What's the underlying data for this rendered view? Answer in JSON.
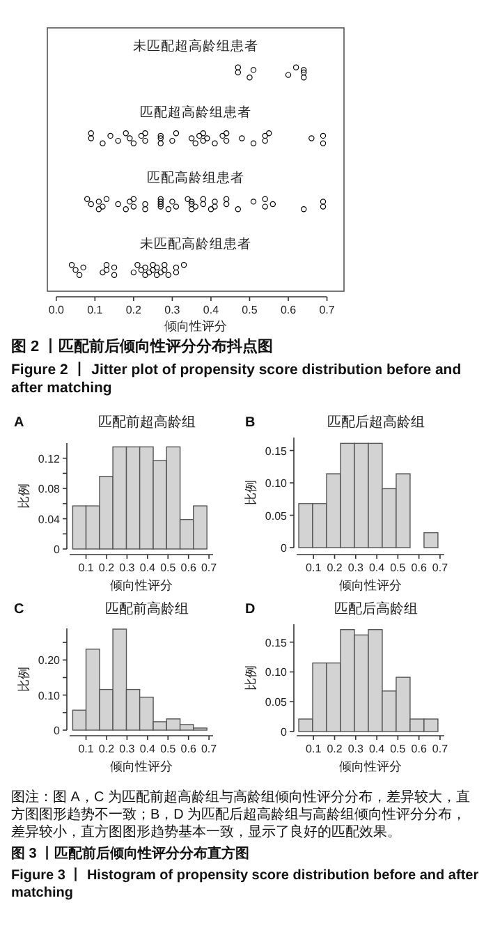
{
  "chart_data": [
    {
      "type": "scatter",
      "xlabel": "倾向性评分",
      "marker": "circle",
      "orientation": "horizontal",
      "categories": [
        "未匹配超高龄组患者",
        "匹配超高龄组患者",
        "匹配高龄组患者",
        "未匹配高龄组患者"
      ],
      "xlim": [
        -0.023,
        0.744
      ],
      "xticks": [
        {
          "value": 0,
          "label": "0.0"
        },
        0.1,
        0.2,
        0.3,
        0.4,
        0.5,
        0.6,
        0.7
      ],
      "series": [
        {
          "color": "#000000",
          "x": [
            "未匹配超高龄组患者",
            "未匹配超高龄组患者",
            "未匹配超高龄组患者",
            "未匹配超高龄组患者",
            "未匹配超高龄组患者",
            "未匹配超高龄组患者",
            "未匹配超高龄组患者",
            "未匹配超高龄组患者",
            "未匹配超高龄组患者"
          ],
          "values": [
            0.47,
            0.47,
            0.5,
            0.51,
            0.6,
            0.62,
            0.64,
            0.64,
            0.64
          ]
        },
        {
          "color": "#000000",
          "x": [
            "匹配超高龄组患者",
            "匹配超高龄组患者",
            "匹配超高龄组患者",
            "匹配超高龄组患者",
            "匹配超高龄组患者",
            "匹配超高龄组患者",
            "匹配超高龄组患者",
            "匹配超高龄组患者",
            "匹配超高龄组患者",
            "匹配超高龄组患者",
            "匹配超高龄组患者",
            "匹配超高龄组患者",
            "匹配超高龄组患者",
            "匹配超高龄组患者",
            "匹配超高龄组患者",
            "匹配超高龄组患者",
            "匹配超高龄组患者",
            "匹配超高龄组患者",
            "匹配超高龄组患者",
            "匹配超高龄组患者",
            "匹配超高龄组患者",
            "匹配超高龄组患者",
            "匹配超高龄组患者",
            "匹配超高龄组患者",
            "匹配超高龄组患者",
            "匹配超高龄组患者",
            "匹配超高龄组患者",
            "匹配超高龄组患者",
            "匹配超高龄组患者",
            "匹配超高龄组患者",
            "匹配超高龄组患者",
            "匹配超高龄组患者",
            "匹配超高龄组患者",
            "匹配超高龄组患者"
          ],
          "values": [
            0.09,
            0.09,
            0.12,
            0.14,
            0.16,
            0.18,
            0.19,
            0.2,
            0.22,
            0.23,
            0.23,
            0.27,
            0.27,
            0.27,
            0.3,
            0.31,
            0.35,
            0.36,
            0.37,
            0.38,
            0.38,
            0.39,
            0.41,
            0.43,
            0.44,
            0.44,
            0.48,
            0.51,
            0.54,
            0.54,
            0.55,
            0.66,
            0.69,
            0.69
          ]
        },
        {
          "color": "#000000",
          "x": [
            "匹配高龄组患者",
            "匹配高龄组患者",
            "匹配高龄组患者",
            "匹配高龄组患者",
            "匹配高龄组患者",
            "匹配高龄组患者",
            "匹配高龄组患者",
            "匹配高龄组患者",
            "匹配高龄组患者",
            "匹配高龄组患者",
            "匹配高龄组患者",
            "匹配高龄组患者",
            "匹配高龄组患者",
            "匹配高龄组患者",
            "匹配高龄组患者",
            "匹配高龄组患者",
            "匹配高龄组患者",
            "匹配高龄组患者",
            "匹配高龄组患者",
            "匹配高龄组患者",
            "匹配高龄组患者",
            "匹配高龄组患者",
            "匹配高龄组患者",
            "匹配高龄组患者",
            "匹配高龄组患者",
            "匹配高龄组患者",
            "匹配高龄组患者",
            "匹配高龄组患者",
            "匹配高龄组患者",
            "匹配高龄组患者",
            "匹配高龄组患者",
            "匹配高龄组患者",
            "匹配高龄组患者",
            "匹配高龄组患者",
            "匹配高龄组患者",
            "匹配高龄组患者",
            "匹配高龄组患者",
            "匹配高龄组患者",
            "匹配高龄组患者",
            "匹配高龄组患者"
          ],
          "values": [
            0.08,
            0.09,
            0.11,
            0.11,
            0.12,
            0.13,
            0.16,
            0.18,
            0.19,
            0.2,
            0.2,
            0.23,
            0.23,
            0.27,
            0.27,
            0.27,
            0.27,
            0.29,
            0.3,
            0.31,
            0.34,
            0.35,
            0.35,
            0.35,
            0.36,
            0.38,
            0.38,
            0.4,
            0.41,
            0.41,
            0.44,
            0.44,
            0.47,
            0.51,
            0.54,
            0.54,
            0.56,
            0.64,
            0.69,
            0.69
          ]
        },
        {
          "color": "#000000",
          "x": [
            "未匹配高龄组患者",
            "未匹配高龄组患者",
            "未匹配高龄组患者",
            "未匹配高龄组患者",
            "未匹配高龄组患者",
            "未匹配高龄组患者",
            "未匹配高龄组患者",
            "未匹配高龄组患者",
            "未匹配高龄组患者",
            "未匹配高龄组患者",
            "未匹配高龄组患者",
            "未匹配高龄组患者",
            "未匹配高龄组患者",
            "未匹配高龄组患者",
            "未匹配高龄组患者",
            "未匹配高龄组患者",
            "未匹配高龄组患者",
            "未匹配高龄组患者",
            "未匹配高龄组患者",
            "未匹配高龄组患者",
            "未匹配高龄组患者",
            "未匹配高龄组患者",
            "未匹配高龄组患者",
            "未匹配高龄组患者",
            "未匹配高龄组患者",
            "未匹配高龄组患者"
          ],
          "values": [
            0.04,
            0.05,
            0.06,
            0.07,
            0.12,
            0.13,
            0.13,
            0.15,
            0.15,
            0.2,
            0.21,
            0.22,
            0.23,
            0.23,
            0.24,
            0.25,
            0.25,
            0.26,
            0.26,
            0.27,
            0.28,
            0.28,
            0.29,
            0.31,
            0.31,
            0.33
          ]
        }
      ],
      "annotations": [
        "图 2 丨匹配前后倾向性评分分布抖点图",
        "Figure 2 丨 Jitter plot of propensity score distribution before and after matching"
      ]
    },
    {
      "type": "histogram",
      "subtitle": "A",
      "title": "匹配前超高龄组",
      "xlabel": "倾向性评分",
      "ylabel": "比例",
      "color": "#d3d3d3",
      "bins": [
        0.035,
        0.1,
        0.166,
        0.231,
        0.297,
        0.362,
        0.428,
        0.493,
        0.559,
        0.624,
        0.69
      ],
      "values": [
        0.057,
        0.057,
        0.096,
        0.135,
        0.135,
        0.135,
        0.117,
        0.135,
        0.039,
        0.057
      ],
      "xlim": [
        0.02,
        0.72
      ],
      "ylim": [
        0,
        0.14
      ],
      "xticks": [
        0.1,
        0.2,
        0.3,
        0.4,
        0.5,
        0.6,
        0.7
      ],
      "yticks": [
        0,
        {
          "value": 0.02,
          "label": null
        },
        0.04,
        {
          "value": 0.06,
          "label": null
        },
        0.08,
        {
          "value": 0.1,
          "label": null
        },
        0.12
      ]
    },
    {
      "type": "histogram",
      "subtitle": "B",
      "title": "匹配后超高龄组",
      "xlabel": "倾向性评分",
      "ylabel": "比例",
      "color": "#d3d3d3",
      "bins": [
        0.03,
        0.096,
        0.162,
        0.228,
        0.294,
        0.36,
        0.426,
        0.492,
        0.558,
        0.624,
        0.69
      ],
      "values": [
        0.068,
        0.068,
        0.114,
        0.161,
        0.161,
        0.161,
        0.091,
        0.114,
        0,
        0.023
      ],
      "xlim": [
        0.02,
        0.72
      ],
      "ylim": [
        0,
        0.17
      ],
      "xticks": [
        0.1,
        0.2,
        0.3,
        0.4,
        0.5,
        0.6,
        0.7
      ],
      "yticks": [
        0,
        0.05,
        {
          "value": 0.1,
          "label": "0.10"
        },
        0.15
      ]
    },
    {
      "type": "histogram",
      "subtitle": "C",
      "title": "匹配前高龄组",
      "xlabel": "倾向性评分",
      "ylabel": "比例",
      "color": "#d3d3d3",
      "bins": [
        0.035,
        0.1,
        0.166,
        0.231,
        0.297,
        0.362,
        0.428,
        0.493,
        0.559,
        0.624,
        0.69
      ],
      "values": [
        0.057,
        0.231,
        0.116,
        0.288,
        0.116,
        0.094,
        0.024,
        0.032,
        0.016,
        0.006
      ],
      "xlim": [
        0.02,
        0.72
      ],
      "ylim": [
        0,
        0.29
      ],
      "xticks": [
        0.1,
        0.2,
        0.3,
        0.4,
        0.5,
        0.6,
        0.7
      ],
      "yticks": [
        0,
        {
          "value": 0.05,
          "label": null
        },
        {
          "value": 0.1,
          "label": "0.10"
        },
        {
          "value": 0.15,
          "label": null
        },
        {
          "value": 0.2,
          "label": "0.20"
        },
        {
          "value": 0.25,
          "label": null
        }
      ]
    },
    {
      "type": "histogram",
      "subtitle": "D",
      "title": "匹配后高龄组",
      "xlabel": "倾向性评分",
      "ylabel": "比例",
      "color": "#d3d3d3",
      "bins": [
        0.03,
        0.096,
        0.162,
        0.228,
        0.294,
        0.36,
        0.426,
        0.492,
        0.558,
        0.624,
        0.69
      ],
      "values": [
        0.021,
        0.115,
        0.115,
        0.171,
        0.162,
        0.171,
        0.068,
        0.091,
        0.021,
        0.021
      ],
      "xlim": [
        0.02,
        0.72
      ],
      "ylim": [
        0,
        0.18
      ],
      "xticks": [
        0.1,
        0.2,
        0.3,
        0.4,
        0.5,
        0.6,
        0.7
      ],
      "yticks": [
        0,
        0.05,
        {
          "value": 0.1,
          "label": "0.10"
        },
        0.15
      ],
      "annotations": [
        "图注：图 A，C 为匹配前超高龄组与高龄组倾向性评分分布，差异较大，直方图图形趋势不一致；B，D 为匹配后超高龄组与高龄组倾向性评分分布，差异较小，直方图图形趋势基本一致，显示了良好的匹配效果。",
        "图 3 丨匹配前后倾向性评分分布直方图",
        "Figure 3 丨 Histogram of propensity score distribution before and after matching"
      ]
    }
  ]
}
